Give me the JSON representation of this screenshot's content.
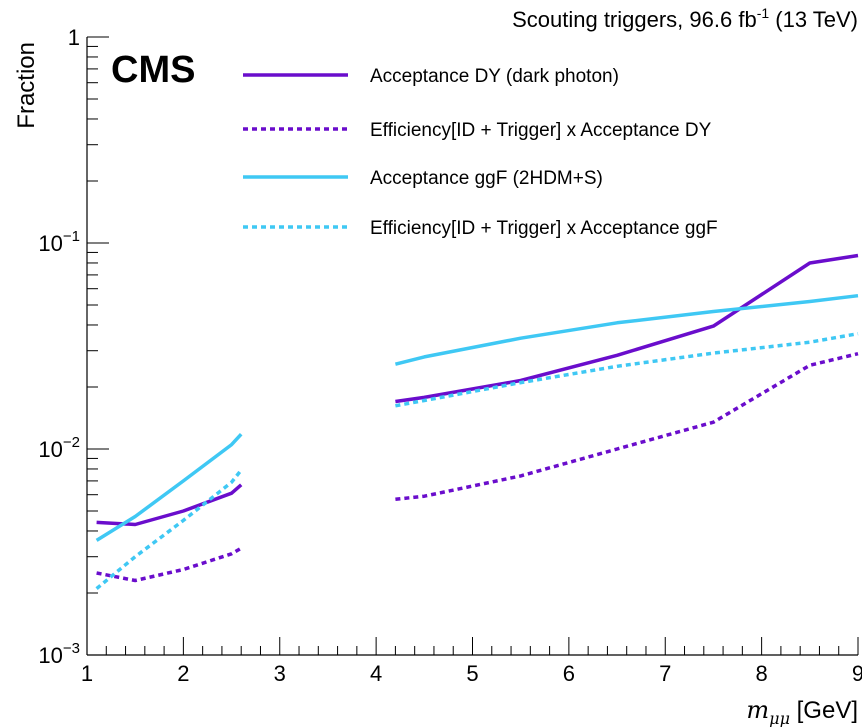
{
  "chart_data": {
    "type": "line",
    "title": "",
    "header_right": {
      "prefix": "Scouting triggers, 96.6 fb",
      "sup": "-1",
      "suffix": " (13 TeV)"
    },
    "experiment_label": "CMS",
    "xlabel": {
      "var": "m",
      "sub": "μμ",
      "unit": " [GeV]"
    },
    "ylabel": "Fraction",
    "xlim": [
      1,
      9
    ],
    "ylim": [
      0.001,
      1
    ],
    "y_scale": "log",
    "x_ticks": [
      "1",
      "2",
      "3",
      "4",
      "5",
      "6",
      "7",
      "8",
      "9"
    ],
    "y_ticks": [
      {
        "base": "1",
        "exp": ""
      },
      {
        "base": "10",
        "exp": "−1"
      },
      {
        "base": "10",
        "exp": "−2"
      },
      {
        "base": "10",
        "exp": "−3"
      }
    ],
    "grid": false,
    "legend_position": "top",
    "series": [
      {
        "name": "Acceptance DY (dark photon)",
        "color": "#6a0dcc",
        "style": "solid",
        "segments": [
          {
            "x": [
              1.1,
              1.5,
              2.0,
              2.5,
              2.6
            ],
            "y": [
              0.0044,
              0.0043,
              0.005,
              0.0061,
              0.0067
            ]
          },
          {
            "x": [
              4.2,
              4.5,
              5.5,
              6.5,
              7.5,
              8.5,
              9.0
            ],
            "y": [
              0.017,
              0.0178,
              0.0215,
              0.0285,
              0.0395,
              0.08,
              0.087
            ]
          }
        ]
      },
      {
        "name": "Efficiency[ID + Trigger] x Acceptance DY",
        "color": "#6a0dcc",
        "style": "dashed",
        "segments": [
          {
            "x": [
              1.1,
              1.5,
              2.0,
              2.5,
              2.6
            ],
            "y": [
              0.0025,
              0.0023,
              0.0026,
              0.0031,
              0.0033
            ]
          },
          {
            "x": [
              4.2,
              4.5,
              5.5,
              6.5,
              7.5,
              8.5,
              9.0
            ],
            "y": [
              0.0057,
              0.0059,
              0.0074,
              0.01,
              0.0135,
              0.0255,
              0.029
            ]
          }
        ]
      },
      {
        "name": "Acceptance ggF (2HDM+S)",
        "color": "#3fc8f4",
        "style": "solid",
        "segments": [
          {
            "x": [
              1.1,
              1.5,
              2.0,
              2.5,
              2.6
            ],
            "y": [
              0.0036,
              0.0047,
              0.007,
              0.0105,
              0.0118
            ]
          },
          {
            "x": [
              4.2,
              4.5,
              5.5,
              6.5,
              7.5,
              8.5,
              9.0
            ],
            "y": [
              0.0258,
              0.028,
              0.0345,
              0.041,
              0.0465,
              0.052,
              0.0555
            ]
          }
        ]
      },
      {
        "name": "Efficiency[ID + Trigger] x Acceptance ggF",
        "color": "#3fc8f4",
        "style": "dashed",
        "segments": [
          {
            "x": [
              1.1,
              1.5,
              2.0,
              2.5,
              2.6
            ],
            "y": [
              0.0021,
              0.003,
              0.0045,
              0.0069,
              0.0079
            ]
          },
          {
            "x": [
              4.2,
              4.5,
              5.5,
              6.5,
              7.5,
              8.5,
              9.0
            ],
            "y": [
              0.0162,
              0.0172,
              0.021,
              0.0252,
              0.0292,
              0.033,
              0.0363
            ]
          }
        ]
      }
    ]
  }
}
